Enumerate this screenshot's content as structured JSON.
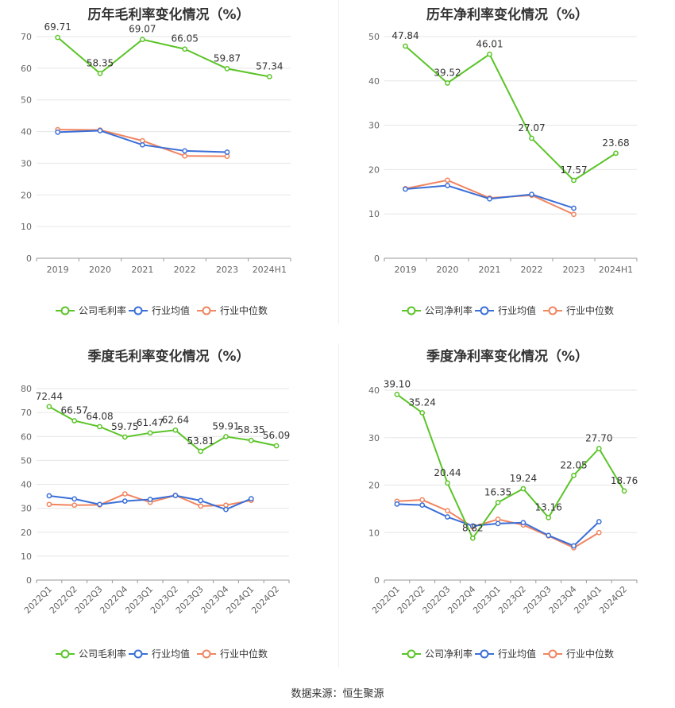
{
  "source_label": "数据来源：恒生聚源",
  "legend": {
    "company_gross": "公司毛利率",
    "company_net": "公司净利率",
    "industry_mean": "行业均值",
    "industry_median": "行业中位数"
  },
  "colors": {
    "company": "#5ac427",
    "mean": "#3a6fd8",
    "median": "#f08560"
  },
  "chart_data": [
    {
      "type": "line",
      "title": "历年毛利率变化情况（%）",
      "categories": [
        "2019",
        "2020",
        "2021",
        "2022",
        "2023",
        "2024H1"
      ],
      "ylim": [
        0,
        80
      ],
      "yticks": [
        0,
        10,
        20,
        30,
        40,
        50,
        60,
        70
      ],
      "series": [
        {
          "name": "公司毛利率",
          "values": [
            69.71,
            58.35,
            69.07,
            66.05,
            59.87,
            57.34
          ],
          "labels": [
            "69.71",
            "58.35",
            "69.07",
            "66.05",
            "59.87",
            "57.34"
          ]
        },
        {
          "name": "行业均值",
          "values": [
            39.8,
            40.3,
            35.8,
            33.9,
            33.5,
            null
          ]
        },
        {
          "name": "行业中位数",
          "values": [
            40.6,
            40.5,
            37.1,
            32.3,
            32.2,
            null
          ]
        }
      ]
    },
    {
      "type": "line",
      "title": "历年净利率变化情况（%）",
      "categories": [
        "2019",
        "2020",
        "2021",
        "2022",
        "2023",
        "2024H1"
      ],
      "ylim": [
        0,
        50
      ],
      "yticks": [
        0,
        10,
        20,
        30,
        40,
        50
      ],
      "series": [
        {
          "name": "公司净利率",
          "values": [
            47.84,
            39.52,
            46.01,
            27.07,
            17.57,
            23.68
          ],
          "labels": [
            "47.84",
            "39.52",
            "46.01",
            "27.07",
            "17.57",
            "23.68"
          ]
        },
        {
          "name": "行业均值",
          "values": [
            15.6,
            16.4,
            13.4,
            14.4,
            11.3,
            null
          ]
        },
        {
          "name": "行业中位数",
          "values": [
            15.7,
            17.6,
            13.6,
            14.2,
            9.9,
            null
          ]
        }
      ]
    },
    {
      "type": "line",
      "title": "季度毛利率变化情况（%）",
      "categories": [
        "2022Q1",
        "2022Q2",
        "2022Q3",
        "2022Q4",
        "2023Q1",
        "2023Q2",
        "2023Q3",
        "2023Q4",
        "2024Q1",
        "2024Q2"
      ],
      "ylim": [
        0,
        80
      ],
      "yticks": [
        0,
        10,
        20,
        30,
        40,
        50,
        60,
        70,
        80
      ],
      "series": [
        {
          "name": "公司毛利率",
          "values": [
            72.44,
            66.57,
            64.08,
            59.75,
            61.47,
            62.64,
            53.81,
            59.91,
            58.35,
            56.09
          ],
          "labels": [
            "72.44",
            "66.57",
            "64.08",
            "59.75",
            "61.47",
            "62.64",
            "53.81",
            "59.91",
            "58.35",
            "56.09"
          ]
        },
        {
          "name": "行业均值",
          "values": [
            35.2,
            33.9,
            31.6,
            33.0,
            33.7,
            35.3,
            33.2,
            29.5,
            34.0,
            null
          ]
        },
        {
          "name": "行业中位数",
          "values": [
            31.6,
            31.3,
            31.4,
            36.0,
            32.5,
            35.4,
            30.9,
            31.3,
            33.3,
            null
          ]
        }
      ]
    },
    {
      "type": "line",
      "title": "季度净利率变化情况（%）",
      "categories": [
        "2022Q1",
        "2022Q2",
        "2022Q3",
        "2022Q4",
        "2023Q1",
        "2023Q2",
        "2023Q3",
        "2023Q4",
        "2024Q1",
        "2024Q2"
      ],
      "ylim": [
        0,
        45
      ],
      "yticks": [
        0,
        10,
        20,
        30,
        40
      ],
      "series": [
        {
          "name": "公司净利率",
          "values": [
            39.1,
            35.24,
            20.44,
            8.82,
            16.35,
            19.24,
            13.16,
            22.05,
            27.7,
            18.76
          ],
          "labels": [
            "39.10",
            "35.24",
            "20.44",
            "8.82",
            "16.35",
            "19.24",
            "13.16",
            "22.05",
            "27.70",
            "18.76"
          ]
        },
        {
          "name": "行业均值",
          "values": [
            16.0,
            15.8,
            13.3,
            11.4,
            11.9,
            12.1,
            9.4,
            7.2,
            12.3,
            null
          ]
        },
        {
          "name": "行业中位数",
          "values": [
            16.6,
            16.9,
            14.6,
            11.2,
            12.8,
            11.6,
            9.3,
            6.8,
            10.0,
            null
          ]
        }
      ]
    }
  ]
}
